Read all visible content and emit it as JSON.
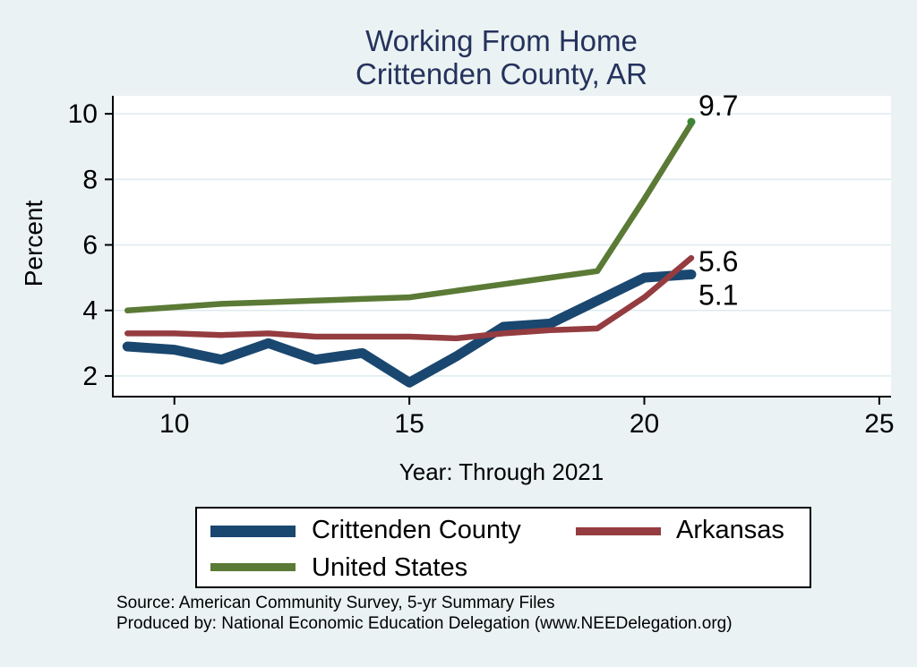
{
  "title": {
    "line1": "Working From Home",
    "line2": "Crittenden County, AR"
  },
  "colors": {
    "title_text": "#24325c",
    "background": "#eaf2f3",
    "plot_background": "#ffffff",
    "grid": "#dfebf0",
    "axis": "#000000"
  },
  "chart_data": {
    "type": "line",
    "title": "Working From Home — Crittenden County, AR",
    "xlabel": "Year: Through 2021",
    "ylabel": "Percent",
    "grid": "horizontal-only",
    "legend_position": "bottom",
    "x": [
      9,
      10,
      11,
      12,
      13,
      14,
      15,
      16,
      17,
      18,
      19,
      20,
      21
    ],
    "x_ticks": [
      10,
      15,
      20,
      25
    ],
    "y_ticks": [
      2,
      4,
      6,
      8,
      10
    ],
    "xlim": [
      8.69,
      25.25
    ],
    "ylim": [
      1.37,
      10.55
    ],
    "series": [
      {
        "name": "Crittenden County",
        "color": "#1a476f",
        "line_width": 11,
        "values": [
          2.9,
          2.8,
          2.5,
          3.0,
          2.5,
          2.7,
          1.8,
          2.6,
          3.5,
          3.6,
          4.3,
          5.0,
          5.1
        ],
        "end_label": "5.1",
        "label_dy": 34
      },
      {
        "name": "Arkansas",
        "color": "#943c40",
        "line_width": 6.5,
        "values": [
          3.3,
          3.3,
          3.25,
          3.3,
          3.2,
          3.2,
          3.2,
          3.15,
          3.3,
          3.4,
          3.45,
          4.4,
          5.6
        ],
        "end_label": "5.6",
        "label_dy": 15
      },
      {
        "name": "United States",
        "color": "#5a7a35",
        "line_width": 6.5,
        "values": [
          4.0,
          4.1,
          4.2,
          4.25,
          4.3,
          4.35,
          4.4,
          4.6,
          4.8,
          5.0,
          5.2,
          7.4,
          9.7
        ],
        "end_label": "9.7",
        "label_dy": -9,
        "end_marker": true,
        "marker_color": "#3e8637"
      }
    ]
  },
  "footer": {
    "source": "Source: American Community Survey, 5-yr Summary Files",
    "produced_by": "Produced by: National Economic Education Delegation (www.NEEDelegation.org)"
  }
}
